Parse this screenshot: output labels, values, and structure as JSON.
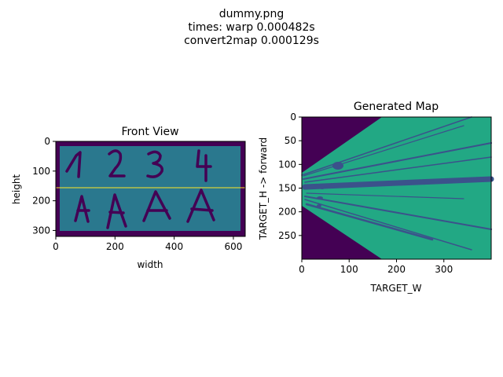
{
  "figure": {
    "suptitle_lines": [
      "dummy.png",
      "times: warp 0.000482s",
      "convert2map 0.000129s"
    ]
  },
  "colors": {
    "viridis_dark": "#440154",
    "viridis_blue": "#3b528b",
    "viridis_teal": "#21918c",
    "viridis_mid": "#2a788e",
    "viridis_green": "#22a884",
    "horizon_line": "#fde725"
  },
  "chart_data": [
    {
      "type": "heatmap",
      "title": "Front View",
      "xlabel": "width",
      "ylabel": "height",
      "xlim": [
        0,
        640
      ],
      "ylim": [
        320,
        0
      ],
      "xticks": [
        0,
        200,
        400,
        600
      ],
      "yticks": [
        0,
        100,
        200,
        300
      ],
      "image": "drawn digits and letters on a teal board with dark border",
      "glyphs_row1": [
        "1",
        "2",
        "3",
        "4"
      ],
      "glyphs_row2": [
        "A",
        "A",
        "A",
        "A"
      ],
      "horizon_line_y": 155
    },
    {
      "type": "heatmap",
      "title": "Generated Map",
      "xlabel": "TARGET_W",
      "ylabel": "TARGET_H -> forward",
      "xlim": [
        0,
        400
      ],
      "ylim": [
        300,
        0
      ],
      "xticks": [
        0,
        100,
        200,
        300
      ],
      "yticks": [
        0,
        50,
        100,
        150,
        200,
        250
      ],
      "image": "bird's-eye map with green fan region expanding to the right and dark purple outside"
    }
  ]
}
